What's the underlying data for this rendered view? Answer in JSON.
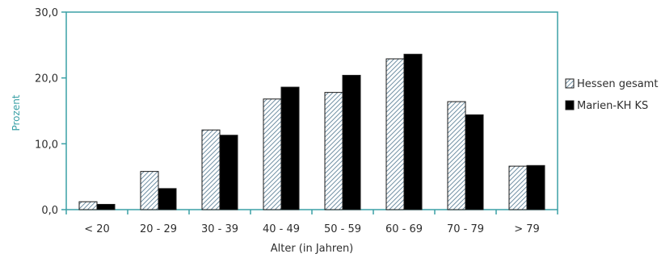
{
  "chart_data": {
    "type": "bar",
    "categories": [
      "< 20",
      "20 - 29",
      "30 - 39",
      "40 - 49",
      "50 - 59",
      "60 - 69",
      "70 - 79",
      "> 79"
    ],
    "series": [
      {
        "name": "Hessen gesamt",
        "values": [
          1.2,
          5.8,
          12.1,
          16.8,
          17.8,
          22.9,
          16.4,
          6.6
        ],
        "fill": "hatched",
        "color": "#6f8fa3"
      },
      {
        "name": "Marien-KH KS",
        "values": [
          0.8,
          3.2,
          11.3,
          18.6,
          20.4,
          23.6,
          14.4,
          6.7
        ],
        "fill": "solid",
        "color": "#000000"
      }
    ],
    "y_ticks": [
      "0,0",
      "10,0",
      "20,0",
      "30,0"
    ],
    "y_tick_values": [
      0,
      10,
      20,
      30
    ],
    "ylim": [
      0,
      30
    ],
    "xlabel": "Alter (in Jahren)",
    "ylabel": "Prozent",
    "legend_position": "right",
    "grid": false,
    "axis_color": "#3aa0a6"
  }
}
